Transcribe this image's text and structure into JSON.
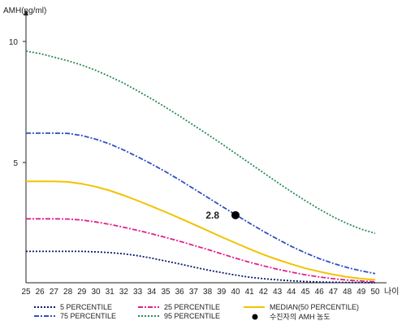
{
  "chart_data": {
    "type": "line",
    "ylabel": "AMH(ng/ml)",
    "xlabel": "나이",
    "x": [
      25,
      26,
      27,
      28,
      29,
      30,
      31,
      32,
      33,
      34,
      35,
      36,
      37,
      38,
      39,
      40,
      41,
      42,
      43,
      44,
      45,
      46,
      47,
      48,
      49,
      50
    ],
    "y_ticks": [
      "10",
      "5"
    ],
    "ylim": [
      0,
      11
    ],
    "xlim": [
      25,
      50
    ],
    "grid": false,
    "legend_position": "bottom",
    "series": [
      {
        "name": "5 PERCENTILE",
        "color": "#0a1a6e",
        "dash": "dotted",
        "values": [
          1.3,
          1.3,
          1.3,
          1.3,
          1.3,
          1.28,
          1.25,
          1.2,
          1.12,
          1.02,
          0.9,
          0.78,
          0.65,
          0.53,
          0.42,
          0.32,
          0.23,
          0.17,
          0.12,
          0.08,
          0.05,
          0.03,
          0.02,
          0.01,
          0.01,
          0.0
        ]
      },
      {
        "name": "25 PERCENTILE",
        "color": "#e0208c",
        "dash": "dashdot",
        "values": [
          2.65,
          2.65,
          2.65,
          2.64,
          2.6,
          2.52,
          2.42,
          2.3,
          2.17,
          2.03,
          1.88,
          1.72,
          1.55,
          1.38,
          1.2,
          1.02,
          0.85,
          0.7,
          0.56,
          0.44,
          0.33,
          0.24,
          0.17,
          0.11,
          0.07,
          0.04
        ]
      },
      {
        "name": "MEDIAN(50 PERCENTILE)",
        "color": "#f2c200",
        "dash": "solid",
        "values": [
          4.2,
          4.2,
          4.2,
          4.18,
          4.1,
          3.98,
          3.82,
          3.62,
          3.4,
          3.17,
          2.93,
          2.68,
          2.42,
          2.16,
          1.9,
          1.65,
          1.4,
          1.17,
          0.96,
          0.77,
          0.6,
          0.46,
          0.34,
          0.24,
          0.17,
          0.12
        ]
      },
      {
        "name": "75 PERCENTILE",
        "color": "#3050c0",
        "dash": "dashdot",
        "values": [
          6.2,
          6.2,
          6.2,
          6.19,
          6.1,
          5.95,
          5.75,
          5.5,
          5.22,
          4.92,
          4.6,
          4.26,
          3.9,
          3.54,
          3.18,
          2.82,
          2.47,
          2.13,
          1.81,
          1.51,
          1.24,
          1.0,
          0.8,
          0.63,
          0.49,
          0.38
        ]
      },
      {
        "name": "95 PERCENTILE",
        "color": "#2a8a55",
        "dash": "dotted",
        "values": [
          9.6,
          9.5,
          9.35,
          9.2,
          9.02,
          8.8,
          8.55,
          8.27,
          7.95,
          7.62,
          7.27,
          6.91,
          6.53,
          6.15,
          5.76,
          5.36,
          4.96,
          4.56,
          4.16,
          3.77,
          3.4,
          3.05,
          2.73,
          2.45,
          2.22,
          2.05
        ]
      }
    ],
    "patient_point": {
      "x": 40,
      "y": 2.8,
      "label": "2.8",
      "legend": "수진자의 AMH 농도",
      "color": "#000000"
    }
  }
}
